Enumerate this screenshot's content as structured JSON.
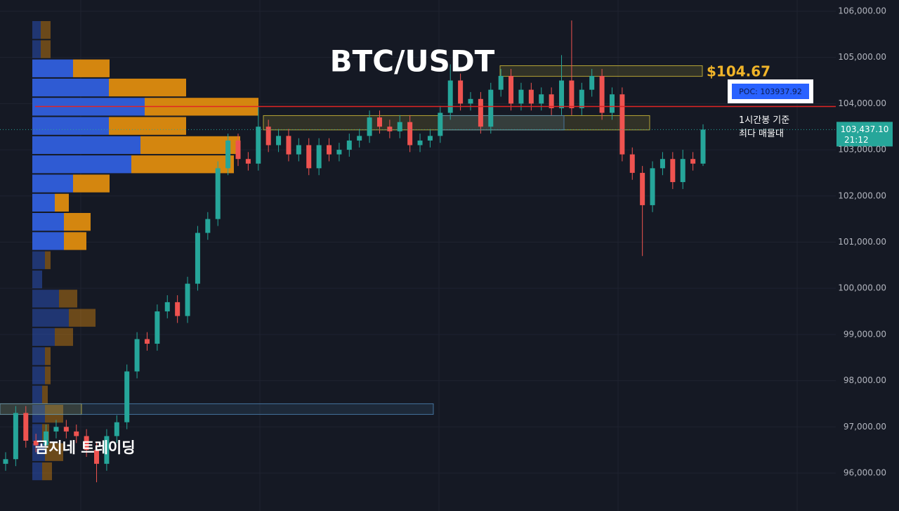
{
  "chart_data": {
    "type": "candlestick",
    "title": "BTC/USDT",
    "watermark": "곰지네 트레이딩",
    "annotation": "1시간봉 기준\n최다 매물대",
    "ylim": [
      95178,
      106243
    ],
    "yticks": [
      {
        "value": 96000,
        "label": "96,000.00"
      },
      {
        "value": 97000,
        "label": "97,000.00"
      },
      {
        "value": 98000,
        "label": "98,000.00"
      },
      {
        "value": 99000,
        "label": "99,000.00"
      },
      {
        "value": 100000,
        "label": "100,000.00"
      },
      {
        "value": 101000,
        "label": "101,000.00"
      },
      {
        "value": 102000,
        "label": "102,000.00"
      },
      {
        "value": 103000,
        "label": "103,000.00"
      },
      {
        "value": 104000,
        "label": "104,000.00"
      },
      {
        "value": 105000,
        "label": "105,000.00"
      },
      {
        "value": 106000,
        "label": "106,000.00"
      }
    ],
    "up_color": "#26a69a",
    "down_color": "#ef5350",
    "candles": {
      "open": [
        96200,
        96300,
        97300,
        96700,
        96600,
        96900,
        97000,
        96900,
        96800,
        96500,
        96200,
        96800,
        97100,
        98200,
        98900,
        98800,
        99500,
        99700,
        99400,
        100100,
        101200,
        101500,
        102600,
        103200,
        102800,
        102700,
        103500,
        103100,
        103300,
        102900,
        103100,
        102600,
        103100,
        102900,
        103000,
        103200,
        103300,
        103700,
        103500,
        103400,
        103600,
        103100,
        103200,
        103300,
        103800,
        104500,
        104000,
        104100,
        103500,
        104300,
        104600,
        104000,
        104300,
        104000,
        104200,
        103900,
        104500,
        103900,
        104300,
        104600,
        103800,
        104200,
        102900,
        102500,
        101800,
        102600,
        102800,
        102300,
        102800,
        102700
      ],
      "high": [
        96450,
        97450,
        97450,
        96850,
        97050,
        97150,
        97150,
        97050,
        96950,
        96650,
        96950,
        97250,
        98350,
        99050,
        99050,
        99650,
        99850,
        99850,
        100250,
        101350,
        101650,
        102750,
        103350,
        103350,
        102950,
        103950,
        103650,
        103450,
        103450,
        103250,
        103250,
        103250,
        103250,
        103150,
        103350,
        103450,
        103850,
        103850,
        103650,
        103750,
        103750,
        103350,
        103450,
        103950,
        104850,
        104650,
        104250,
        104250,
        104450,
        104750,
        104750,
        104450,
        104450,
        104350,
        104350,
        105050,
        105800,
        104450,
        104750,
        104750,
        104350,
        104350,
        103050,
        102650,
        102750,
        102950,
        102950,
        103000,
        102950,
        103550
      ],
      "low": [
        96050,
        96150,
        96550,
        96450,
        96450,
        96750,
        96750,
        96650,
        96350,
        95800,
        96050,
        96650,
        96950,
        98050,
        98650,
        98650,
        99350,
        99250,
        99250,
        99950,
        101050,
        101350,
        102450,
        102650,
        102550,
        102550,
        102950,
        102950,
        102750,
        102750,
        102450,
        102450,
        102750,
        102750,
        102850,
        103050,
        103150,
        103350,
        103250,
        103250,
        102950,
        102950,
        103050,
        103150,
        103650,
        103850,
        103850,
        103350,
        103350,
        104150,
        103850,
        103850,
        103850,
        103850,
        103750,
        103750,
        103750,
        103750,
        104150,
        103650,
        103650,
        102750,
        102350,
        100700,
        101650,
        102450,
        102150,
        102150,
        102550,
        102650
      ],
      "close": [
        96300,
        97300,
        96700,
        96600,
        96900,
        97000,
        96900,
        96800,
        96500,
        96200,
        96800,
        97100,
        98200,
        98900,
        98800,
        99500,
        99700,
        99400,
        100100,
        101200,
        101500,
        102600,
        103200,
        102800,
        102700,
        103500,
        103100,
        103300,
        102900,
        103100,
        102600,
        103100,
        102900,
        103000,
        103200,
        103300,
        103700,
        103500,
        103400,
        103600,
        103100,
        103200,
        103300,
        103800,
        104500,
        104000,
        104100,
        103500,
        104300,
        104600,
        104000,
        104300,
        104000,
        104200,
        103900,
        104500,
        103900,
        104300,
        104600,
        103800,
        104200,
        102900,
        102500,
        101800,
        102600,
        102800,
        102300,
        102800,
        102700,
        103437.1
      ]
    },
    "volume_profile": {
      "buy": [
        12,
        12,
        58,
        109,
        160,
        109,
        154,
        141,
        58,
        32,
        45,
        45,
        18,
        14,
        38,
        52,
        32,
        18,
        18,
        14,
        18,
        14,
        18,
        14
      ],
      "sell": [
        14,
        14,
        52,
        110,
        162,
        110,
        142,
        146,
        52,
        20,
        38,
        32,
        8,
        0,
        26,
        38,
        26,
        8,
        8,
        8,
        26,
        10,
        26,
        14
      ],
      "buy_color": "#2f5bd3",
      "sell_color": "#d4860f",
      "value_area_rows": [
        2,
        11
      ]
    },
    "zones": [
      {
        "low": 104590,
        "high": 104820,
        "color": "#d8c23a",
        "label": "$104.67"
      },
      {
        "low": 103430,
        "high": 103740,
        "color": "#d8c23a"
      },
      {
        "low": 103430,
        "high": 103740,
        "color": "#4f86b8"
      },
      {
        "low": 97270,
        "high": 97500,
        "color": "#d8c23a"
      },
      {
        "low": 97270,
        "high": 97500,
        "color": "#4f86b8"
      }
    ],
    "poc": {
      "value": 103937.92,
      "label": "POC: 103937.92",
      "color": "#e02424"
    },
    "last_price": {
      "value": 103437.1,
      "label": "103,437.10",
      "countdown": "21:12"
    }
  }
}
